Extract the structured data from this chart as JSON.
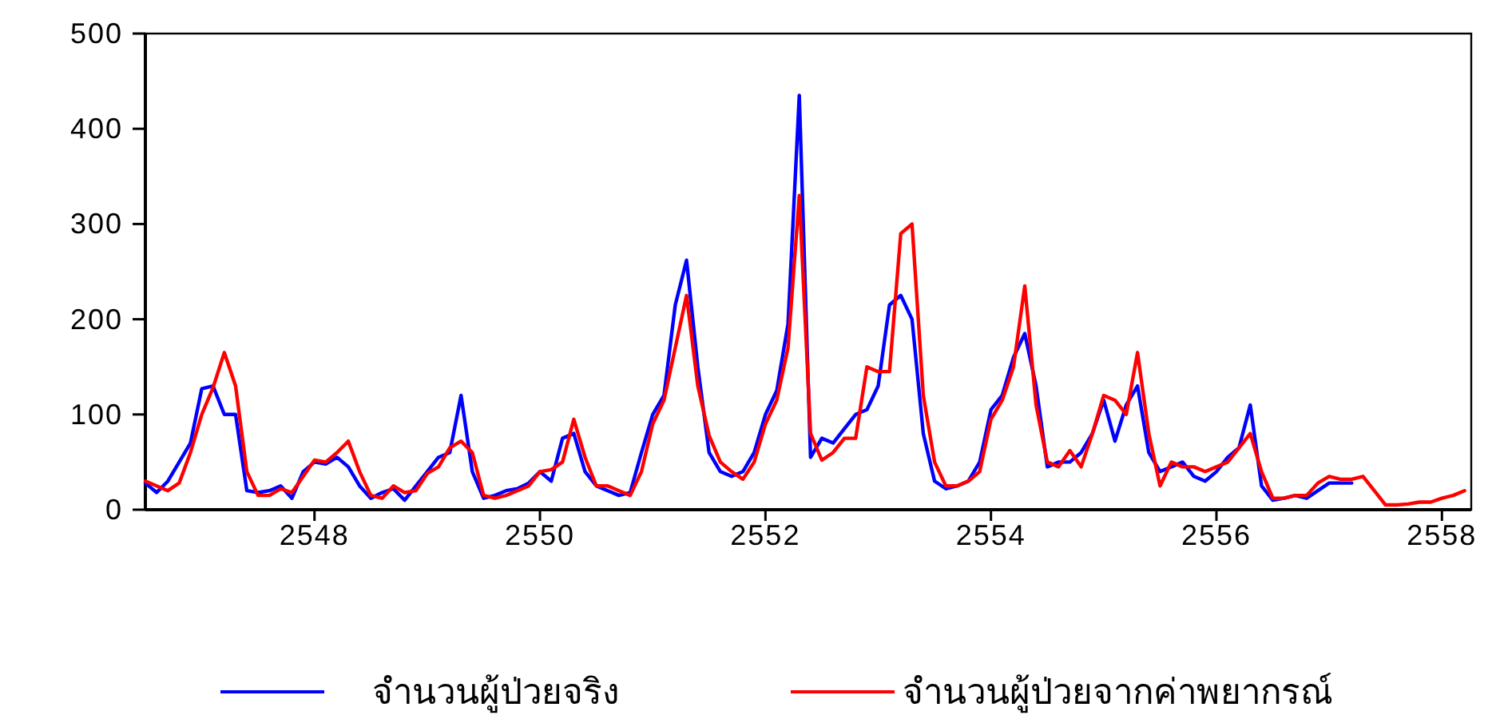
{
  "chart_data": {
    "type": "line",
    "xlim": [
      2546.5,
      2558.26
    ],
    "xticks": [
      2548,
      2550,
      2552,
      2554,
      2556,
      2558
    ],
    "ylim": [
      0,
      500
    ],
    "yticks": [
      0,
      100,
      200,
      300,
      400,
      500
    ],
    "grid": false,
    "legend": "bottom",
    "line_style": "solid",
    "marker": "none",
    "x": [
      2546.5,
      2546.6,
      2546.7,
      2546.8,
      2546.9,
      2547.0,
      2547.1,
      2547.2,
      2547.3,
      2547.4,
      2547.5,
      2547.6,
      2547.7,
      2547.8,
      2547.9,
      2548.0,
      2548.1,
      2548.2,
      2548.3,
      2548.4,
      2548.5,
      2548.6,
      2548.7,
      2548.8,
      2548.9,
      2549.0,
      2549.1,
      2549.2,
      2549.3,
      2549.4,
      2549.5,
      2549.6,
      2549.7,
      2549.8,
      2549.9,
      2550.0,
      2550.1,
      2550.2,
      2550.3,
      2550.4,
      2550.5,
      2550.6,
      2550.7,
      2550.8,
      2550.9,
      2551.0,
      2551.1,
      2551.2,
      2551.3,
      2551.4,
      2551.5,
      2551.6,
      2551.7,
      2551.8,
      2551.9,
      2552.0,
      2552.1,
      2552.2,
      2552.3,
      2552.4,
      2552.5,
      2552.6,
      2552.7,
      2552.8,
      2552.9,
      2553.0,
      2553.1,
      2553.2,
      2553.3,
      2553.4,
      2553.5,
      2553.6,
      2553.7,
      2553.8,
      2553.9,
      2554.0,
      2554.1,
      2554.2,
      2554.3,
      2554.4,
      2554.5,
      2554.6,
      2554.7,
      2554.8,
      2554.9,
      2555.0,
      2555.1,
      2555.2,
      2555.3,
      2555.4,
      2555.5,
      2555.6,
      2555.7,
      2555.8,
      2555.9,
      2556.0,
      2556.1,
      2556.2,
      2556.3,
      2556.4,
      2556.5,
      2556.6,
      2556.7,
      2556.8,
      2556.9,
      2557.0,
      2557.1,
      2557.2,
      2557.3,
      2557.4,
      2557.5,
      2557.6,
      2557.7,
      2557.8,
      2557.9,
      2558.0,
      2558.1,
      2558.2
    ],
    "series": [
      {
        "name": "จำนวนผู้ป่วยจริง",
        "color": "#0000ff",
        "values": [
          28,
          18,
          30,
          50,
          70,
          127,
          130,
          100,
          100,
          20,
          18,
          20,
          25,
          12,
          40,
          50,
          48,
          55,
          45,
          25,
          12,
          18,
          22,
          10,
          25,
          40,
          55,
          60,
          120,
          40,
          12,
          15,
          20,
          22,
          28,
          40,
          30,
          75,
          80,
          40,
          25,
          20,
          15,
          18,
          60,
          100,
          120,
          215,
          262,
          150,
          60,
          40,
          35,
          40,
          60,
          100,
          125,
          195,
          435,
          55,
          75,
          70,
          85,
          100,
          105,
          130,
          215,
          225,
          200,
          80,
          30,
          22,
          25,
          30,
          50,
          105,
          120,
          160,
          185,
          130,
          45,
          50,
          50,
          60,
          80,
          115,
          72,
          110,
          130,
          60,
          40,
          45,
          50,
          35,
          30,
          40,
          55,
          65,
          110,
          25,
          10,
          12,
          15,
          12,
          20,
          28,
          28,
          28,
          null,
          null,
          null,
          null,
          null,
          null,
          null,
          null,
          null,
          null
        ]
      },
      {
        "name": "จำนวนผู้ป่วยจากค่าพยากรณ์",
        "color": "#ff0000",
        "values": [
          30,
          25,
          20,
          28,
          60,
          100,
          128,
          165,
          130,
          40,
          15,
          15,
          22,
          18,
          35,
          52,
          50,
          60,
          72,
          40,
          15,
          12,
          25,
          18,
          20,
          38,
          45,
          65,
          72,
          60,
          15,
          12,
          15,
          20,
          25,
          40,
          42,
          50,
          95,
          55,
          25,
          25,
          20,
          15,
          40,
          90,
          115,
          170,
          225,
          130,
          78,
          50,
          40,
          32,
          50,
          90,
          115,
          170,
          330,
          80,
          52,
          60,
          75,
          75,
          150,
          145,
          145,
          290,
          300,
          120,
          50,
          25,
          25,
          30,
          40,
          95,
          115,
          150,
          235,
          110,
          50,
          45,
          62,
          45,
          80,
          120,
          115,
          100,
          165,
          80,
          25,
          50,
          45,
          45,
          40,
          45,
          50,
          65,
          80,
          40,
          12,
          12,
          15,
          15,
          28,
          35,
          32,
          32,
          35,
          20,
          5,
          5,
          6,
          8,
          8,
          12,
          15,
          20
        ]
      }
    ]
  }
}
